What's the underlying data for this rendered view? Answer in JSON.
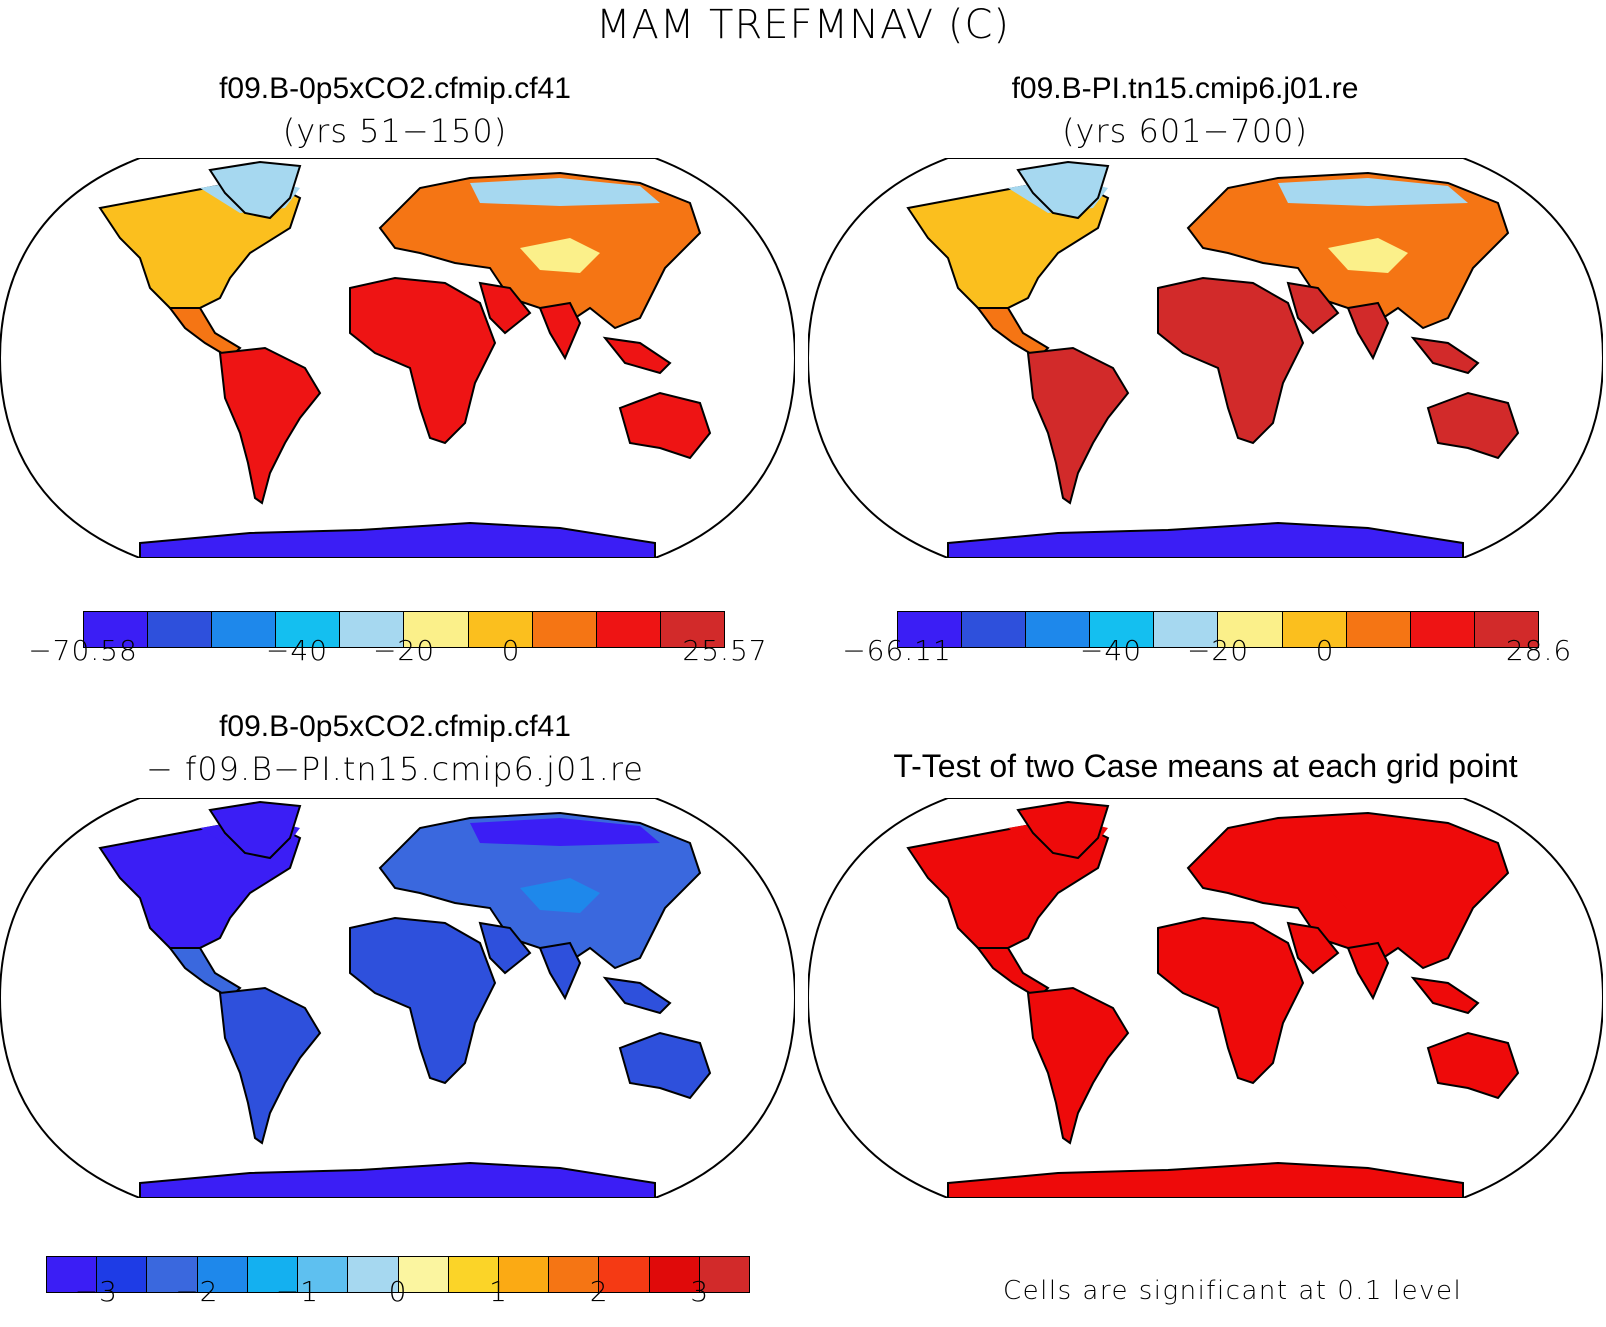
{
  "figure_title": "MAM TREFMNAV (C)",
  "panels": {
    "top_left": {
      "title": "f09.B-0p5xCO2.cfmip.cf41",
      "subtitle": "(yrs 51−150)"
    },
    "top_right": {
      "title": "f09.B-PI.tn15.cmip6.j01.re",
      "subtitle": "(yrs 601−700)"
    },
    "bottom_left": {
      "title": "f09.B-0p5xCO2.cfmip.cf41",
      "subtitle": "− f09.B−PI.tn15.cmip6.j01.re"
    },
    "bottom_right": {
      "title": "T-Test of two Case means at each grid point",
      "note": "Cells are significant at 0.1 level"
    }
  },
  "colorbars": {
    "top_left": {
      "colors": [
        "#3b1ef5",
        "#2e50dc",
        "#1e88eb",
        "#14bff0",
        "#a6d8f0",
        "#fbf08a",
        "#fbbf1e",
        "#f57514",
        "#ee1414",
        "#d22a2a"
      ],
      "ticks": [
        {
          "label": "−70.58",
          "pos": 0.0
        },
        {
          "label": "−40",
          "pos": 0.3333
        },
        {
          "label": "−20",
          "pos": 0.5
        },
        {
          "label": "0",
          "pos": 0.6667
        },
        {
          "label": "25.57",
          "pos": 1.0
        }
      ]
    },
    "top_right": {
      "colors": [
        "#3b1ef5",
        "#2e50dc",
        "#1e88eb",
        "#14bff0",
        "#a6d8f0",
        "#fbf08a",
        "#fbbf1e",
        "#f57514",
        "#ee1414",
        "#d22a2a"
      ],
      "ticks": [
        {
          "label": "−66.11",
          "pos": 0.0
        },
        {
          "label": "−40",
          "pos": 0.3333
        },
        {
          "label": "−20",
          "pos": 0.5
        },
        {
          "label": "0",
          "pos": 0.6667
        },
        {
          "label": "28.6",
          "pos": 1.0
        }
      ]
    },
    "bottom_left": {
      "colors": [
        "#3b1ef5",
        "#1e3ce6",
        "#3a68de",
        "#1e88eb",
        "#14b0f0",
        "#5ec0f0",
        "#a6d8f0",
        "#fbf5a0",
        "#fbd428",
        "#fbaa14",
        "#f57514",
        "#f53a14",
        "#e00a0a",
        "#d22a2a"
      ],
      "ticks": [
        {
          "label": "−3",
          "pos": 0.0714
        },
        {
          "label": "−2",
          "pos": 0.2143
        },
        {
          "label": "−1",
          "pos": 0.3571
        },
        {
          "label": "0",
          "pos": 0.5
        },
        {
          "label": "1",
          "pos": 0.6429
        },
        {
          "label": "2",
          "pos": 0.7857
        },
        {
          "label": "3",
          "pos": 0.9286
        }
      ]
    }
  },
  "map_fills": {
    "top_left": {
      "north": "#fbbf1e",
      "high": "#a6d8f0",
      "tropic": "#ee1414",
      "mid": "#f57514",
      "antarctic": "#3b1ef5",
      "antarctic_edge": "#1e88eb",
      "desert": "#fbf08a"
    },
    "top_right": {
      "north": "#fbbf1e",
      "high": "#a6d8f0",
      "tropic": "#d22a2a",
      "mid": "#f57514",
      "antarctic": "#3b1ef5",
      "antarctic_edge": "#1e88eb",
      "desert": "#fbf08a"
    },
    "bottom_left": {
      "north": "#3b1ef5",
      "high": "#3b1ef5",
      "tropic": "#2e50dc",
      "mid": "#3a68de",
      "antarctic": "#3b1ef5",
      "antarctic_edge": "#3b1ef5",
      "desert": "#1e88eb"
    },
    "bottom_right": {
      "north": "#ee0a0a",
      "high": "#ee0a0a",
      "tropic": "#ee0a0a",
      "mid": "#ee0a0a",
      "antarctic": "#ee0a0a",
      "antarctic_edge": "#ee0a0a",
      "desert": "#ee0a0a"
    }
  }
}
